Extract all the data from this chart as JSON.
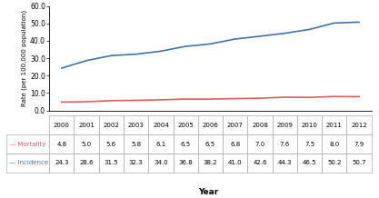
{
  "years": [
    2000,
    2001,
    2002,
    2003,
    2004,
    2005,
    2006,
    2007,
    2008,
    2009,
    2010,
    2011,
    2012
  ],
  "mortality": [
    4.8,
    5.0,
    5.6,
    5.8,
    6.1,
    6.5,
    6.5,
    6.8,
    7.0,
    7.6,
    7.5,
    8.0,
    7.9
  ],
  "incidence": [
    24.3,
    28.6,
    31.5,
    32.3,
    34.0,
    36.8,
    38.2,
    41.0,
    42.6,
    44.3,
    46.5,
    50.2,
    50.7
  ],
  "mortality_color": "#d95f5f",
  "incidence_color": "#4472a8",
  "ylabel": "Rate (per 100,000 population)",
  "xlabel": "Year",
  "ylim": [
    0,
    60
  ],
  "yticks": [
    0.0,
    10.0,
    20.0,
    30.0,
    40.0,
    50.0,
    60.0
  ],
  "background_color": "#ffffff",
  "mortality_label": "Mortality",
  "incidence_label": "Incidence",
  "line_width": 1.2,
  "table_font_size": 5.0,
  "axis_font_size": 5.5
}
